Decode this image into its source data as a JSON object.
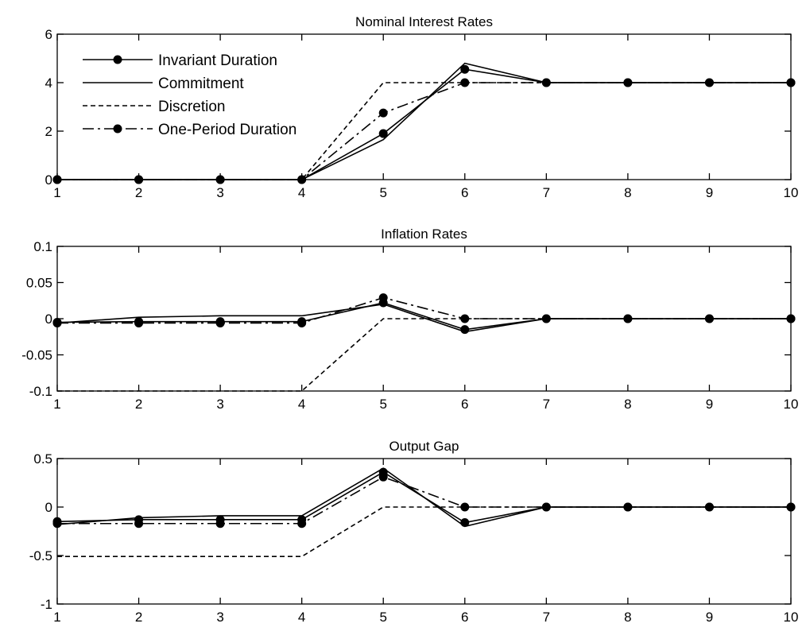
{
  "chart_data": [
    {
      "type": "line",
      "title": "Nominal Interest Rates",
      "x": [
        1,
        2,
        3,
        4,
        5,
        6,
        7,
        8,
        9,
        10
      ],
      "xlim": [
        1,
        10
      ],
      "ylim": [
        0,
        6
      ],
      "xticks": [
        "1",
        "2",
        "3",
        "4",
        "5",
        "6",
        "7",
        "8",
        "9",
        "10"
      ],
      "yticks": [
        0,
        2,
        4,
        6
      ],
      "ytick_labels": [
        "0",
        "2",
        "4",
        "6"
      ],
      "legend": {
        "placement": "upper-left"
      },
      "series": [
        {
          "name": "Invariant Duration",
          "style": "solid",
          "markers": true,
          "values": [
            0,
            0,
            0,
            0,
            1.9,
            4.55,
            4,
            4,
            4,
            4
          ]
        },
        {
          "name": "Commitment",
          "style": "solid",
          "markers": false,
          "values": [
            0,
            0,
            0,
            0,
            1.65,
            4.8,
            4,
            4,
            4,
            4
          ]
        },
        {
          "name": "Discretion",
          "style": "dashed",
          "markers": false,
          "values": [
            0,
            0,
            0,
            0,
            4,
            4,
            4,
            4,
            4,
            4
          ]
        },
        {
          "name": "One-Period Duration",
          "style": "dashdot",
          "markers": true,
          "values": [
            0,
            0,
            0,
            0,
            2.75,
            4,
            4,
            4,
            4,
            4
          ]
        }
      ]
    },
    {
      "type": "line",
      "title": "Inflation Rates",
      "x": [
        1,
        2,
        3,
        4,
        5,
        6,
        7,
        8,
        9,
        10
      ],
      "xlim": [
        1,
        10
      ],
      "ylim": [
        -0.1,
        0.1
      ],
      "xticks": [
        "1",
        "2",
        "3",
        "4",
        "5",
        "6",
        "7",
        "8",
        "9",
        "10"
      ],
      "yticks": [
        -0.1,
        -0.05,
        0,
        0.05,
        0.1
      ],
      "ytick_labels": [
        "-0.1",
        "-0.05",
        "0",
        "0.05",
        "0.1"
      ],
      "series": [
        {
          "name": "Invariant Duration",
          "style": "solid",
          "markers": true,
          "values": [
            -0.005,
            -0.004,
            -0.004,
            -0.004,
            0.022,
            -0.015,
            0,
            0,
            0,
            0
          ]
        },
        {
          "name": "Commitment",
          "style": "solid",
          "markers": false,
          "values": [
            -0.006,
            0.002,
            0.004,
            0.004,
            0.02,
            -0.018,
            0,
            0,
            0,
            0
          ]
        },
        {
          "name": "Discretion",
          "style": "dashed",
          "markers": false,
          "values": [
            -0.1,
            -0.1,
            -0.1,
            -0.1,
            0,
            0,
            0,
            0,
            0,
            0
          ]
        },
        {
          "name": "One-Period Duration",
          "style": "dashdot",
          "markers": true,
          "values": [
            -0.006,
            -0.006,
            -0.006,
            -0.006,
            0.029,
            0,
            0,
            0,
            0,
            0
          ]
        }
      ]
    },
    {
      "type": "line",
      "title": "Output Gap",
      "x": [
        1,
        2,
        3,
        4,
        5,
        6,
        7,
        8,
        9,
        10
      ],
      "xlim": [
        1,
        10
      ],
      "ylim": [
        -1,
        0.5
      ],
      "xticks": [
        "1",
        "2",
        "3",
        "4",
        "5",
        "6",
        "7",
        "8",
        "9",
        "10"
      ],
      "yticks": [
        -1,
        -0.5,
        0,
        0.5
      ],
      "ytick_labels": [
        "-1",
        "-0.5",
        "0",
        "0.5"
      ],
      "series": [
        {
          "name": "Invariant Duration",
          "style": "solid",
          "markers": true,
          "values": [
            -0.15,
            -0.13,
            -0.13,
            -0.13,
            0.36,
            -0.16,
            0,
            0,
            0,
            0
          ]
        },
        {
          "name": "Commitment",
          "style": "solid",
          "markers": false,
          "values": [
            -0.18,
            -0.11,
            -0.09,
            -0.09,
            0.4,
            -0.2,
            0,
            0,
            0,
            0
          ]
        },
        {
          "name": "Discretion",
          "style": "dashed",
          "markers": false,
          "values": [
            -0.51,
            -0.51,
            -0.51,
            -0.51,
            0,
            0,
            0,
            0,
            0,
            0
          ]
        },
        {
          "name": "One-Period Duration",
          "style": "dashdot",
          "markers": true,
          "values": [
            -0.17,
            -0.17,
            -0.17,
            -0.17,
            0.31,
            0,
            0,
            0,
            0,
            0
          ]
        }
      ]
    }
  ]
}
